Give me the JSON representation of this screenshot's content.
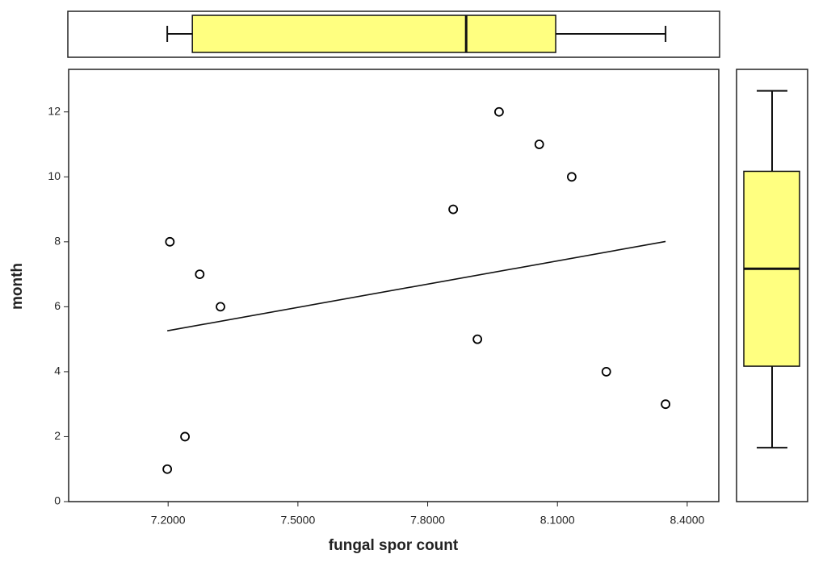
{
  "chart_data": {
    "type": "scatter",
    "x_label": "fungal spor count",
    "y_label": "month",
    "x": [
      7.204,
      7.273,
      7.321,
      7.239,
      7.198,
      7.859,
      7.915,
      7.965,
      8.058,
      8.133,
      8.213,
      8.35
    ],
    "values": [
      8,
      7,
      6,
      2,
      1,
      9,
      5,
      12,
      11,
      10,
      4,
      3
    ],
    "color": "#000000",
    "xlim": [
      6.97,
      8.473
    ],
    "ylim": [
      0,
      13.31
    ],
    "xticks": [
      {
        "value": 7.2,
        "label": "7.2000"
      },
      {
        "value": 7.5,
        "label": "7.5000"
      },
      {
        "value": 7.8,
        "label": "7.8000"
      },
      {
        "value": 8.1,
        "label": "8.1000"
      },
      {
        "value": 8.4,
        "label": "8.4000"
      }
    ],
    "yticks": [
      0,
      2,
      4,
      6,
      8,
      10,
      12
    ],
    "fit_line": {
      "x": [
        7.198,
        8.35
      ],
      "values": [
        5.26,
        8.01
      ]
    },
    "x_boxplot": {
      "min": 7.198,
      "q1": 7.256,
      "median": 7.889,
      "q3": 8.096,
      "max": 8.35,
      "color": "#ffff80"
    },
    "y_boxplot": {
      "min": 1.66,
      "q1": 4.17,
      "median": 7.17,
      "q3": 10.17,
      "max": 12.65,
      "color": "#ffff80"
    }
  }
}
